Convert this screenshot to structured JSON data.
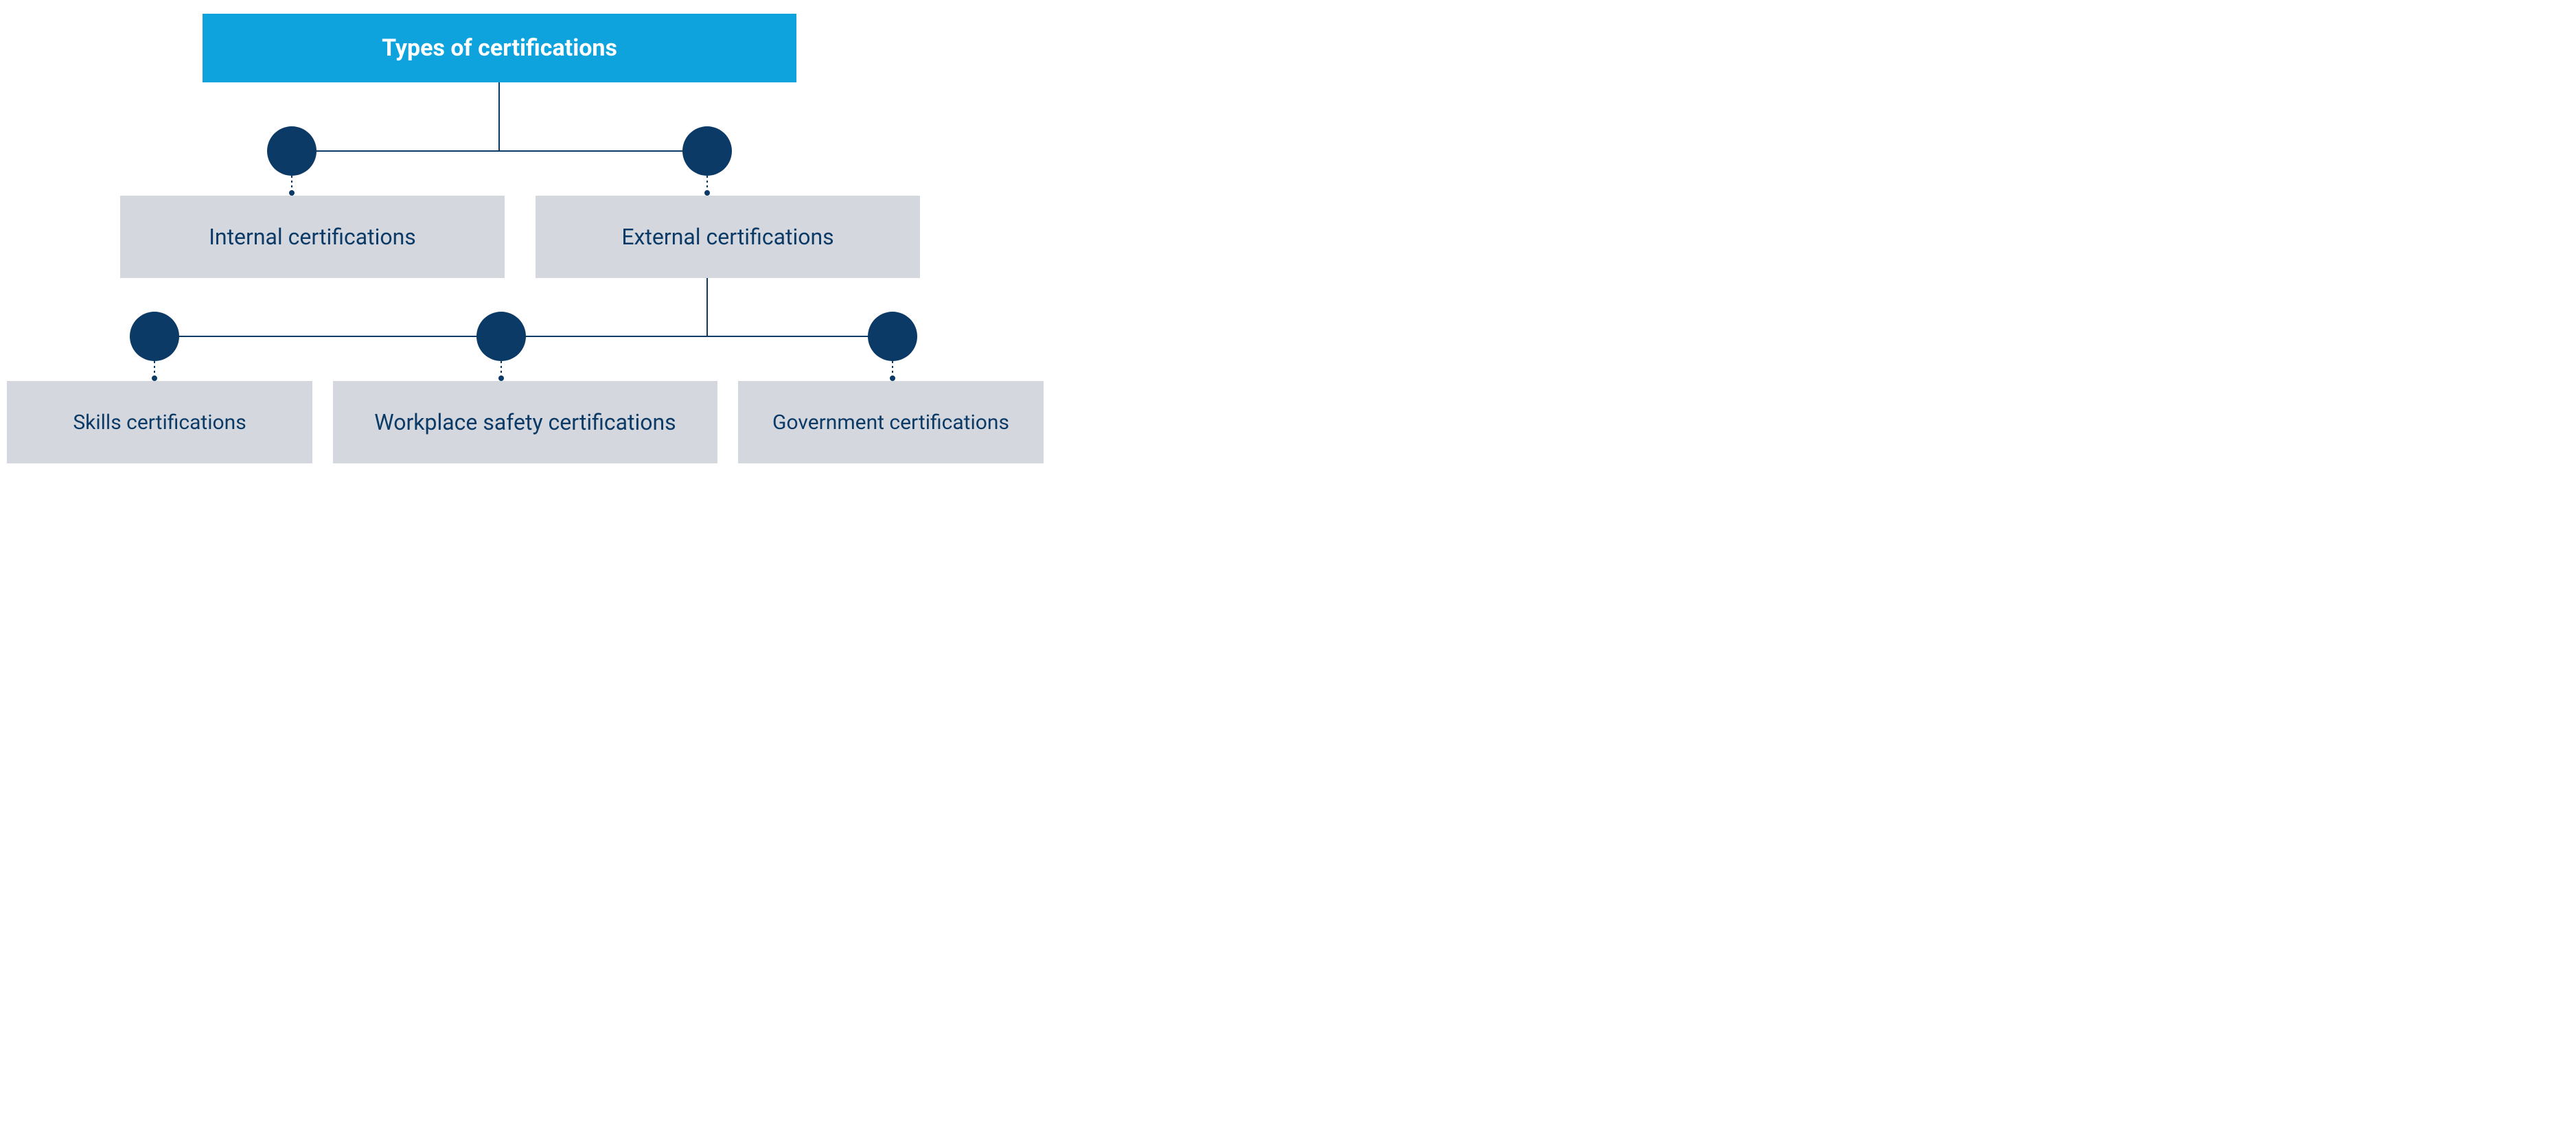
{
  "diagram": {
    "type": "tree",
    "background_color": "#ffffff",
    "root": {
      "label": "Types of certifications",
      "bg_color": "#0fa3de",
      "text_color": "#ffffff",
      "fontsize": 34,
      "fontweight": 700
    },
    "level1": {
      "internal": {
        "label": "Internal certifications",
        "bg_color": "#d4d8de",
        "text_color": "#0c3a66",
        "fontsize": 32
      },
      "external": {
        "label": "External certifications",
        "bg_color": "#d4d8de",
        "text_color": "#0c3a66",
        "fontsize": 32
      }
    },
    "level2": {
      "skills": {
        "label": "Skills certifications",
        "bg_color": "#d4d8de",
        "text_color": "#0c3a66",
        "fontsize": 30
      },
      "safety": {
        "label": "Workplace safety certifications",
        "bg_color": "#d4d8de",
        "text_color": "#0c3a66",
        "fontsize": 30
      },
      "government": {
        "label": "Government certifications",
        "bg_color": "#d4d8de",
        "text_color": "#0c3a66",
        "fontsize": 30
      }
    },
    "connector": {
      "line_color": "#0c3a66",
      "line_width": 2,
      "circle_color": "#0c3a66",
      "circle_radius": 36,
      "dot_radius": 4,
      "dotted_len": 22
    }
  }
}
